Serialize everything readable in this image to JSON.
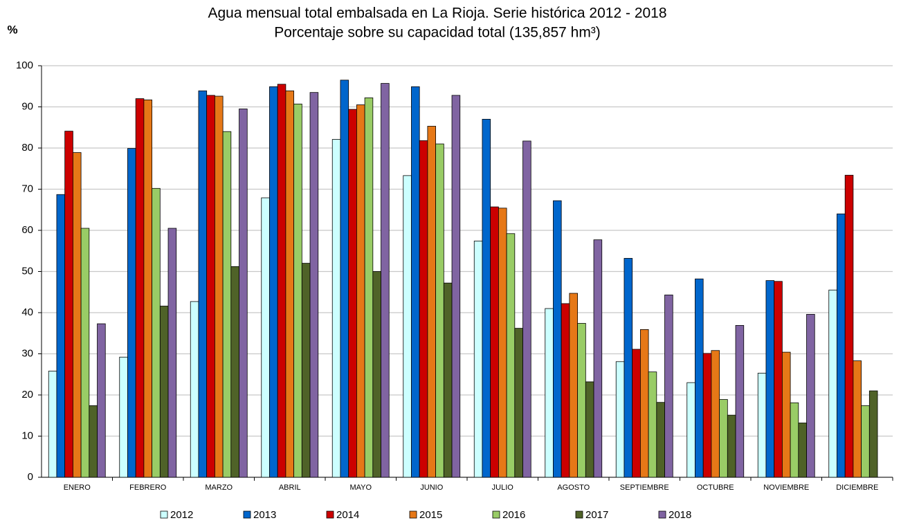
{
  "chart_data": {
    "type": "bar",
    "title": "Agua mensual total embalsada en La Rioja. Serie histórica 2012 - 2018",
    "subtitle": "Porcentaje sobre su capacidad total (135,857 hm³)",
    "y_label": "%",
    "categories": [
      "ENERO",
      "FEBRERO",
      "MARZO",
      "ABRIL",
      "MAYO",
      "JUNIO",
      "JULIO",
      "AGOSTO",
      "SEPTIEMBRE",
      "OCTUBRE",
      "NOVIEMBRE",
      "DICIEMBRE"
    ],
    "series": [
      {
        "name": "2012",
        "color": "#ccffff",
        "values": [
          25.8,
          29.2,
          42.7,
          67.9,
          82.1,
          73.3,
          57.4,
          41.0,
          28.1,
          23.0,
          25.3,
          45.5
        ]
      },
      {
        "name": "2013",
        "color": "#0066cc",
        "values": [
          68.7,
          79.9,
          93.9,
          94.9,
          96.5,
          94.9,
          87.0,
          67.2,
          53.2,
          48.2,
          47.8,
          64.0
        ]
      },
      {
        "name": "2014",
        "color": "#cc0000",
        "values": [
          84.1,
          92.0,
          92.8,
          95.5,
          89.4,
          81.8,
          65.7,
          42.2,
          31.1,
          30.1,
          47.6,
          73.4
        ]
      },
      {
        "name": "2015",
        "color": "#e67817",
        "values": [
          78.9,
          91.7,
          92.6,
          93.9,
          90.5,
          85.3,
          65.4,
          44.7,
          35.9,
          30.8,
          30.4,
          28.3
        ]
      },
      {
        "name": "2016",
        "color": "#99cc66",
        "values": [
          60.5,
          70.2,
          84.0,
          90.7,
          92.2,
          81.0,
          59.2,
          37.4,
          25.6,
          18.9,
          18.1,
          17.4
        ]
      },
      {
        "name": "2017",
        "color": "#4f6228",
        "values": [
          17.4,
          41.6,
          51.2,
          52.0,
          50.0,
          47.2,
          36.2,
          23.2,
          18.2,
          15.1,
          13.2,
          21.0
        ]
      },
      {
        "name": "2018",
        "color": "#8064a2",
        "values": [
          37.3,
          60.5,
          89.5,
          93.5,
          95.7,
          92.8,
          81.7,
          57.7,
          44.3,
          36.9,
          39.6,
          null
        ]
      }
    ],
    "ylim": [
      0,
      100
    ],
    "yticks": [
      0,
      10,
      20,
      30,
      40,
      50,
      60,
      70,
      80,
      90,
      100
    ],
    "grid": true,
    "legend": "bottom"
  }
}
